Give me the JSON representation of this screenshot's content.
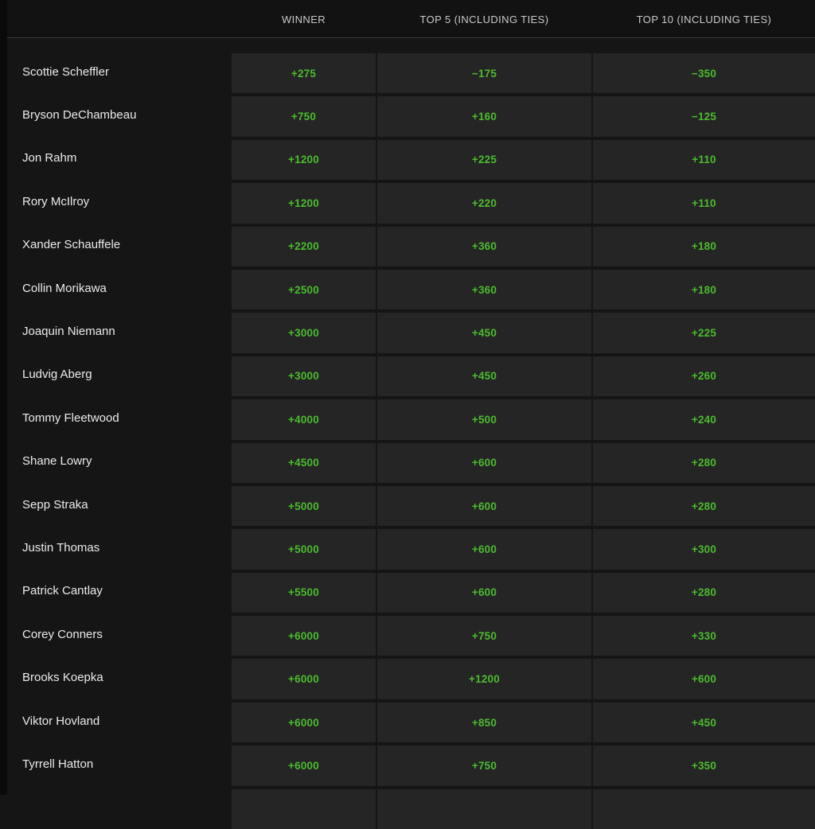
{
  "header": {
    "columns": [
      {
        "label": "WINNER"
      },
      {
        "label": "TOP 5 (INCLUDING TIES)"
      },
      {
        "label": "TOP 10 (INCLUDING TIES)"
      }
    ]
  },
  "rows": [
    {
      "player": "Scottie Scheffler",
      "odds": [
        "+275",
        "−175",
        "−350"
      ]
    },
    {
      "player": "Bryson DeChambeau",
      "odds": [
        "+750",
        "+160",
        "−125"
      ]
    },
    {
      "player": "Jon Rahm",
      "odds": [
        "+1200",
        "+225",
        "+110"
      ]
    },
    {
      "player": "Rory McIlroy",
      "odds": [
        "+1200",
        "+220",
        "+110"
      ]
    },
    {
      "player": "Xander Schauffele",
      "odds": [
        "+2200",
        "+360",
        "+180"
      ]
    },
    {
      "player": "Collin Morikawa",
      "odds": [
        "+2500",
        "+360",
        "+180"
      ]
    },
    {
      "player": "Joaquin Niemann",
      "odds": [
        "+3000",
        "+450",
        "+225"
      ]
    },
    {
      "player": "Ludvig Aberg",
      "odds": [
        "+3000",
        "+450",
        "+260"
      ]
    },
    {
      "player": "Tommy Fleetwood",
      "odds": [
        "+4000",
        "+500",
        "+240"
      ]
    },
    {
      "player": "Shane Lowry",
      "odds": [
        "+4500",
        "+600",
        "+280"
      ]
    },
    {
      "player": "Sepp Straka",
      "odds": [
        "+5000",
        "+600",
        "+280"
      ]
    },
    {
      "player": "Justin Thomas",
      "odds": [
        "+5000",
        "+600",
        "+300"
      ]
    },
    {
      "player": "Patrick Cantlay",
      "odds": [
        "+5500",
        "+600",
        "+280"
      ]
    },
    {
      "player": "Corey Conners",
      "odds": [
        "+6000",
        "+750",
        "+330"
      ]
    },
    {
      "player": "Brooks Koepka",
      "odds": [
        "+6000",
        "+1200",
        "+600"
      ]
    },
    {
      "player": "Viktor Hovland",
      "odds": [
        "+6000",
        "+850",
        "+450"
      ]
    },
    {
      "player": "Tyrrell Hatton",
      "odds": [
        "+6000",
        "+750",
        "+350"
      ]
    }
  ],
  "partial_next_row_visible": true,
  "colors": {
    "odds_green": "#4bbb2f",
    "cell_background": "#252525",
    "page_background": "#151515",
    "header_background": "#121212",
    "header_border": "#3a3a3a",
    "player_text": "#ebebeb",
    "header_text": "#c9c9c9"
  }
}
